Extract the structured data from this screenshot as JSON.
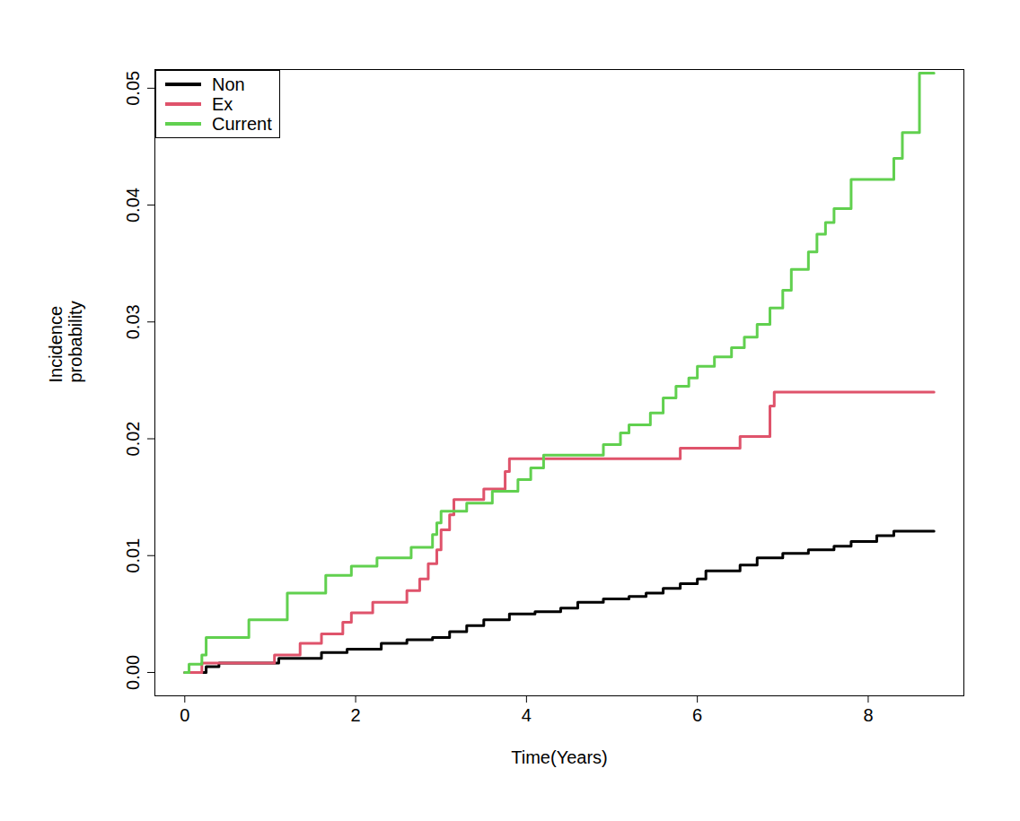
{
  "chart_data": {
    "type": "step",
    "x_label": "Time(Years)",
    "y_label": "Incidence\nprobability",
    "xlim": [
      -0.35,
      9.12
    ],
    "ylim": [
      -0.002,
      0.0516
    ],
    "xticks": [
      0,
      2,
      4,
      6,
      8
    ],
    "yticks": [
      {
        "value": 0,
        "label": "0.00"
      },
      {
        "value": 0.01,
        "label": "0.01"
      },
      {
        "value": 0.02,
        "label": "0.02"
      },
      {
        "value": 0.03,
        "label": "0.03"
      },
      {
        "value": 0.04,
        "label": "0.04"
      },
      {
        "value": 0.05,
        "label": "0.05"
      }
    ],
    "grid": false,
    "legend": "top-left",
    "series": [
      {
        "name": "Non",
        "color": "#000000",
        "x": [
          0,
          0.25,
          0.4,
          1.1,
          1.6,
          1.9,
          2.3,
          2.6,
          2.9,
          3.1,
          3.3,
          3.5,
          3.8,
          4.1,
          4.4,
          4.6,
          4.9,
          5.2,
          5.4,
          5.6,
          5.8,
          6.0,
          6.1,
          6.5,
          6.7,
          7.0,
          7.3,
          7.6,
          7.8,
          8.1,
          8.3,
          8.77
        ],
        "values": [
          0,
          0.0005,
          0.0008,
          0.0012,
          0.0017,
          0.002,
          0.0025,
          0.0028,
          0.003,
          0.0035,
          0.004,
          0.0045,
          0.005,
          0.0052,
          0.0055,
          0.006,
          0.0063,
          0.0065,
          0.0068,
          0.0072,
          0.0076,
          0.008,
          0.0087,
          0.0092,
          0.0098,
          0.0102,
          0.0105,
          0.0108,
          0.0112,
          0.0117,
          0.0121,
          0.0121
        ]
      },
      {
        "name": "Ex",
        "color": "#DF536B",
        "x": [
          0,
          0.2,
          1.05,
          1.35,
          1.6,
          1.85,
          1.95,
          2.2,
          2.6,
          2.75,
          2.85,
          2.95,
          3.0,
          3.1,
          3.15,
          3.5,
          3.75,
          3.8,
          5.8,
          6.5,
          6.85,
          6.9,
          8.77
        ],
        "values": [
          0,
          0.0008,
          0.0015,
          0.0025,
          0.0033,
          0.0043,
          0.0051,
          0.006,
          0.007,
          0.008,
          0.0093,
          0.0105,
          0.0122,
          0.0135,
          0.0148,
          0.0157,
          0.0172,
          0.0183,
          0.0192,
          0.0202,
          0.0228,
          0.024,
          0.024
        ]
      },
      {
        "name": "Current",
        "color": "#61D04F",
        "x": [
          0,
          0.05,
          0.2,
          0.25,
          0.75,
          1.2,
          1.65,
          1.95,
          2.25,
          2.65,
          2.9,
          2.95,
          3.0,
          3.3,
          3.6,
          3.9,
          4.05,
          4.2,
          4.9,
          5.1,
          5.2,
          5.45,
          5.6,
          5.75,
          5.9,
          6.0,
          6.2,
          6.4,
          6.55,
          6.7,
          6.85,
          7.0,
          7.1,
          7.3,
          7.4,
          7.5,
          7.6,
          7.8,
          8.3,
          8.4,
          8.6,
          8.77
        ],
        "values": [
          0,
          0.0007,
          0.0015,
          0.003,
          0.0045,
          0.0068,
          0.0083,
          0.0091,
          0.0098,
          0.0107,
          0.0118,
          0.0128,
          0.0138,
          0.0145,
          0.0155,
          0.0165,
          0.0175,
          0.0186,
          0.0195,
          0.0205,
          0.0212,
          0.0222,
          0.0235,
          0.0245,
          0.0252,
          0.0262,
          0.027,
          0.0278,
          0.0287,
          0.0298,
          0.0312,
          0.0327,
          0.0345,
          0.036,
          0.0375,
          0.0385,
          0.0397,
          0.0422,
          0.044,
          0.0462,
          0.0513,
          0.0513
        ]
      }
    ]
  }
}
